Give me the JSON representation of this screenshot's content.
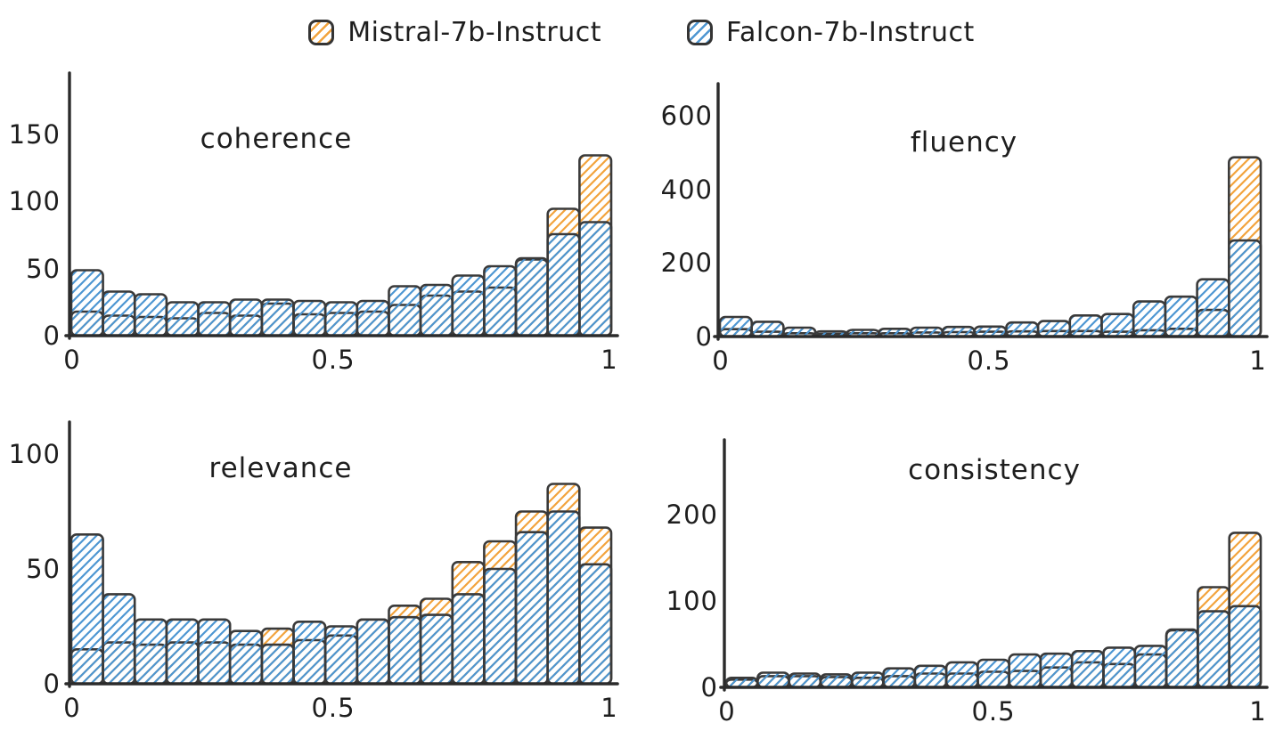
{
  "legend": {
    "items": [
      {
        "label": "Mistral-7b-Instruct",
        "color": "#F2A33C"
      },
      {
        "label": "Falcon-7b-Instruct",
        "color": "#4D96D2"
      }
    ]
  },
  "style": {
    "background": "#ffffff",
    "axis_color": "#2b2b2b",
    "bar_outline": "#3a3a3a",
    "text_color": "#1e1e1e"
  },
  "chart_data": [
    {
      "type": "bar",
      "subtype": "overlaid-histogram",
      "title": "coherence",
      "bins": 17,
      "range": [
        0,
        1
      ],
      "xticks": [
        "0",
        "0.5",
        "1"
      ],
      "yticks": [
        "0",
        "50",
        "100",
        "150"
      ],
      "ylim": [
        0,
        195
      ],
      "series": [
        {
          "name": "Mistral-7b-Instruct",
          "color": "#F2A33C",
          "values": [
            18,
            15,
            14,
            13,
            17,
            15,
            24,
            16,
            17,
            18,
            23,
            30,
            33,
            36,
            57,
            95,
            135
          ]
        },
        {
          "name": "Falcon-7b-Instruct",
          "color": "#4D96D2",
          "values": [
            49,
            33,
            31,
            25,
            25,
            27,
            27,
            26,
            25,
            26,
            37,
            38,
            45,
            52,
            58,
            76,
            85
          ]
        }
      ]
    },
    {
      "type": "bar",
      "subtype": "overlaid-histogram",
      "title": "fluency",
      "bins": 17,
      "range": [
        0,
        1
      ],
      "xticks": [
        "0",
        "0.5",
        "1"
      ],
      "yticks": [
        "0",
        "200",
        "400",
        "600"
      ],
      "ylim": [
        0,
        685
      ],
      "series": [
        {
          "name": "Mistral-7b-Instruct",
          "color": "#F2A33C",
          "values": [
            20,
            13,
            9,
            7,
            9,
            9,
            11,
            12,
            13,
            14,
            15,
            15,
            13,
            17,
            21,
            72,
            485
          ]
        },
        {
          "name": "Falcon-7b-Instruct",
          "color": "#4D96D2",
          "values": [
            53,
            40,
            24,
            14,
            18,
            21,
            24,
            26,
            27,
            38,
            42,
            57,
            61,
            95,
            108,
            155,
            260
          ]
        }
      ]
    },
    {
      "type": "bar",
      "subtype": "overlaid-histogram",
      "title": "relevance",
      "bins": 17,
      "range": [
        0,
        1
      ],
      "xticks": [
        "0",
        "0.5",
        "1"
      ],
      "yticks": [
        "0",
        "50",
        "100"
      ],
      "ylim": [
        0,
        115
      ],
      "series": [
        {
          "name": "Mistral-7b-Instruct",
          "color": "#F2A33C",
          "values": [
            15,
            18,
            17,
            18,
            18,
            17,
            24,
            19,
            21,
            28,
            34,
            37,
            53,
            62,
            75,
            87,
            68
          ]
        },
        {
          "name": "Falcon-7b-Instruct",
          "color": "#4D96D2",
          "values": [
            65,
            39,
            28,
            28,
            28,
            23,
            17,
            27,
            25,
            28,
            29,
            30,
            39,
            50,
            66,
            75,
            52
          ]
        }
      ]
    },
    {
      "type": "bar",
      "subtype": "overlaid-histogram",
      "title": "consistency",
      "bins": 17,
      "range": [
        0,
        1
      ],
      "xticks": [
        "0",
        "0.5",
        "1"
      ],
      "yticks": [
        "0",
        "100",
        "200"
      ],
      "ylim": [
        0,
        285
      ],
      "series": [
        {
          "name": "Mistral-7b-Instruct",
          "color": "#F2A33C",
          "values": [
            9,
            13,
            13,
            12,
            11,
            13,
            16,
            16,
            18,
            19,
            23,
            29,
            27,
            38,
            66,
            116,
            179
          ]
        },
        {
          "name": "Falcon-7b-Instruct",
          "color": "#4D96D2",
          "values": [
            11,
            17,
            16,
            15,
            17,
            22,
            25,
            29,
            32,
            38,
            39,
            42,
            46,
            48,
            67,
            88,
            94
          ]
        }
      ]
    }
  ]
}
